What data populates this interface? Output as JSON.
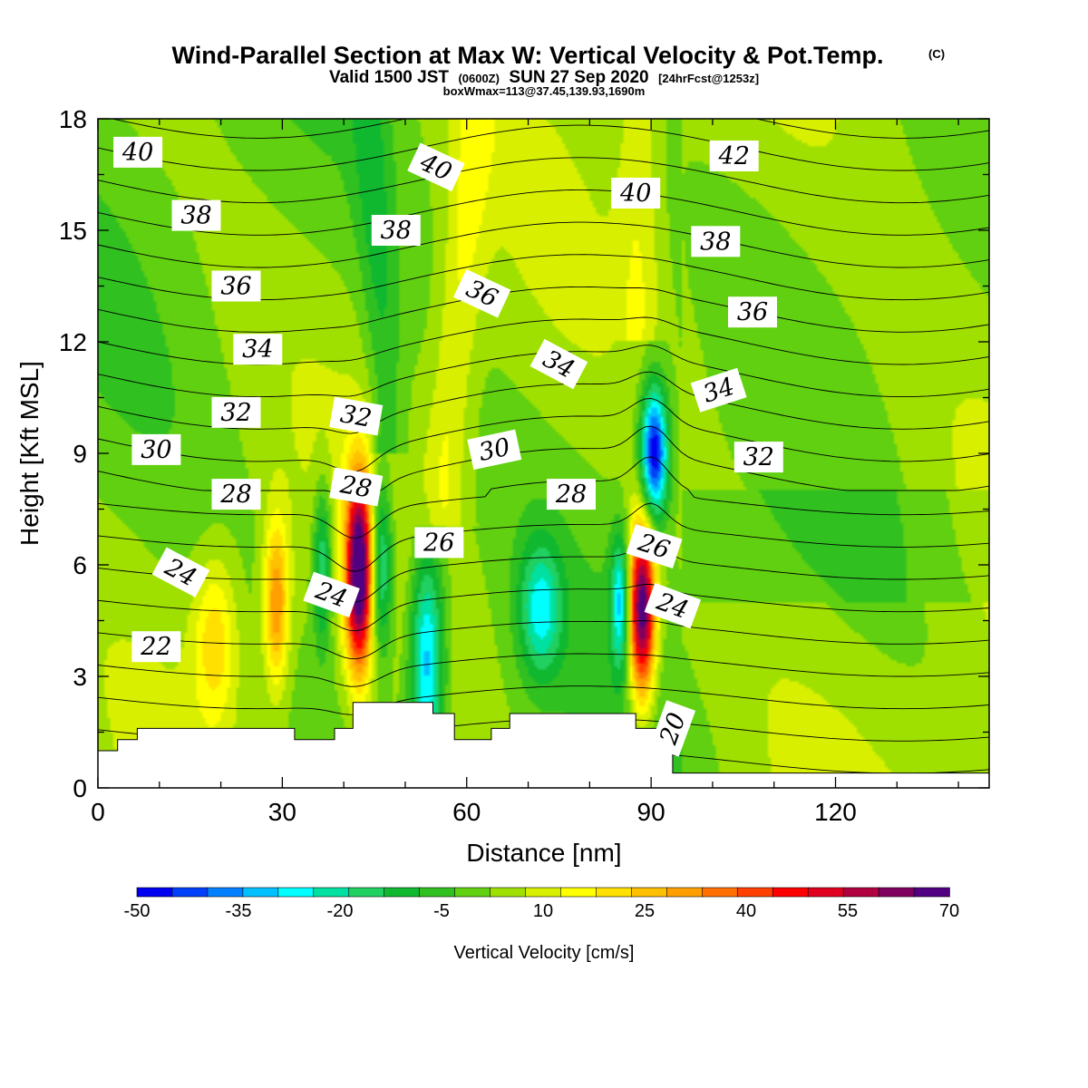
{
  "title": {
    "main": "Wind-Parallel Section at Max W: Vertical Velocity & Pot.Temp.",
    "copyright": "(C)",
    "valid_prefix": "Valid 1500 JST",
    "valid_utc": "(0600Z)",
    "valid_date": "SUN 27 Sep 2020",
    "forecast": "[24hrFcst@1253z]",
    "boxline": "boxWmax=113@37.45,139.93,1690m"
  },
  "chart_data": {
    "type": "heatmap",
    "xlabel": "Distance [nm]",
    "ylabel": "Height [Kft MSL]",
    "xlim": [
      0,
      145
    ],
    "ylim": [
      0,
      18
    ],
    "x_ticks": [
      0,
      30,
      60,
      90,
      120
    ],
    "y_ticks": [
      0,
      3,
      6,
      9,
      12,
      15,
      18
    ],
    "colorbar": {
      "label": "Vertical Velocity [cm/s]",
      "min": -50,
      "max": 70,
      "step": 5,
      "tick_values": [
        -50,
        -35,
        -20,
        -5,
        10,
        25,
        40,
        55,
        70
      ],
      "colors": [
        "#0000f0",
        "#0040f8",
        "#0080ff",
        "#00c0ff",
        "#00ffff",
        "#00e0a0",
        "#20d060",
        "#10b830",
        "#30c020",
        "#60d010",
        "#a0e000",
        "#d8f000",
        "#ffff00",
        "#ffe000",
        "#ffc000",
        "#ffa000",
        "#ff7000",
        "#ff4000",
        "#ff0000",
        "#e00020",
        "#b00040",
        "#800060",
        "#500080"
      ]
    },
    "theta_contours": {
      "label": "Potential temperature",
      "labels": [
        {
          "value": "40",
          "x": 6.5,
          "y": 17.1,
          "rot": 0
        },
        {
          "value": "40",
          "x": 55.0,
          "y": 16.7,
          "rot": 25
        },
        {
          "value": "40",
          "x": 87.5,
          "y": 16.0,
          "rot": 0
        },
        {
          "value": "42",
          "x": 103.5,
          "y": 17.0,
          "rot": 0
        },
        {
          "value": "38",
          "x": 16.0,
          "y": 15.4,
          "rot": 0
        },
        {
          "value": "38",
          "x": 48.5,
          "y": 15.0,
          "rot": 0
        },
        {
          "value": "38",
          "x": 100.5,
          "y": 14.7,
          "rot": 0
        },
        {
          "value": "36",
          "x": 22.5,
          "y": 13.5,
          "rot": 0
        },
        {
          "value": "36",
          "x": 62.5,
          "y": 13.3,
          "rot": 25
        },
        {
          "value": "36",
          "x": 106.5,
          "y": 12.8,
          "rot": 0
        },
        {
          "value": "34",
          "x": 26.0,
          "y": 11.8,
          "rot": 0
        },
        {
          "value": "34",
          "x": 75.0,
          "y": 11.4,
          "rot": 28
        },
        {
          "value": "34",
          "x": 101.0,
          "y": 10.7,
          "rot": -18
        },
        {
          "value": "32",
          "x": 22.5,
          "y": 10.1,
          "rot": 0
        },
        {
          "value": "32",
          "x": 42.0,
          "y": 10.0,
          "rot": 10
        },
        {
          "value": "32",
          "x": 107.5,
          "y": 8.9,
          "rot": 0
        },
        {
          "value": "30",
          "x": 9.5,
          "y": 9.1,
          "rot": 0
        },
        {
          "value": "30",
          "x": 64.5,
          "y": 9.1,
          "rot": -12
        },
        {
          "value": "28",
          "x": 22.5,
          "y": 7.9,
          "rot": 0
        },
        {
          "value": "28",
          "x": 42.0,
          "y": 8.1,
          "rot": 10
        },
        {
          "value": "28",
          "x": 77.0,
          "y": 7.9,
          "rot": 0
        },
        {
          "value": "26",
          "x": 55.5,
          "y": 6.6,
          "rot": 0
        },
        {
          "value": "26",
          "x": 90.5,
          "y": 6.5,
          "rot": 18
        },
        {
          "value": "24",
          "x": 13.5,
          "y": 5.8,
          "rot": 28
        },
        {
          "value": "24",
          "x": 38.0,
          "y": 5.2,
          "rot": 20
        },
        {
          "value": "24",
          "x": 93.5,
          "y": 4.9,
          "rot": 20
        },
        {
          "value": "22",
          "x": 9.5,
          "y": 3.8,
          "rot": 0
        },
        {
          "value": "20",
          "x": 93.5,
          "y": 1.6,
          "rot": -70
        }
      ]
    },
    "w_features": [
      {
        "type": "updraft",
        "x": 42.5,
        "y": 5.8,
        "peak": 70,
        "sx": 2.2,
        "sy": 2.6
      },
      {
        "type": "updraft",
        "x": 29.0,
        "y": 5.0,
        "peak": 30,
        "sx": 2.0,
        "sy": 2.2
      },
      {
        "type": "updraft",
        "x": 88.5,
        "y": 4.8,
        "peak": 68,
        "sx": 2.2,
        "sy": 2.4
      },
      {
        "type": "updraft",
        "x": 19.0,
        "y": 4.0,
        "peak": 18,
        "sx": 3.5,
        "sy": 2.2
      },
      {
        "type": "downdraft",
        "x": 90.5,
        "y": 9.0,
        "peak": -52,
        "sx": 2.2,
        "sy": 1.8
      },
      {
        "type": "downdraft",
        "x": 53.5,
        "y": 3.5,
        "peak": -35,
        "sx": 2.8,
        "sy": 3.0
      },
      {
        "type": "downdraft",
        "x": 85.0,
        "y": 5.0,
        "peak": -30,
        "sx": 1.5,
        "sy": 1.8
      },
      {
        "type": "downdraft",
        "x": 72.0,
        "y": 4.8,
        "peak": -25,
        "sx": 3.5,
        "sy": 1.8
      },
      {
        "type": "downdraft",
        "x": 46.0,
        "y": 6.0,
        "peak": -28,
        "sx": 2.0,
        "sy": 2.5
      },
      {
        "type": "downdraft",
        "x": 36.5,
        "y": 6.0,
        "peak": -22,
        "sx": 1.5,
        "sy": 2.2
      }
    ],
    "terrain_kft": [
      [
        0,
        1.0
      ],
      [
        3.2,
        1.0
      ],
      [
        3.2,
        1.3
      ],
      [
        6.4,
        1.3
      ],
      [
        6.4,
        1.6
      ],
      [
        32,
        1.6
      ],
      [
        32,
        1.3
      ],
      [
        38.5,
        1.3
      ],
      [
        38.5,
        1.6
      ],
      [
        41.5,
        1.6
      ],
      [
        41.5,
        2.3
      ],
      [
        54.5,
        2.3
      ],
      [
        54.5,
        2.0
      ],
      [
        58,
        2.0
      ],
      [
        58,
        1.3
      ],
      [
        64,
        1.3
      ],
      [
        64,
        1.6
      ],
      [
        67,
        1.6
      ],
      [
        67,
        2.0
      ],
      [
        87.5,
        2.0
      ],
      [
        87.5,
        1.6
      ],
      [
        93.5,
        1.6
      ],
      [
        93.5,
        0.4
      ],
      [
        145,
        0.4
      ]
    ]
  }
}
